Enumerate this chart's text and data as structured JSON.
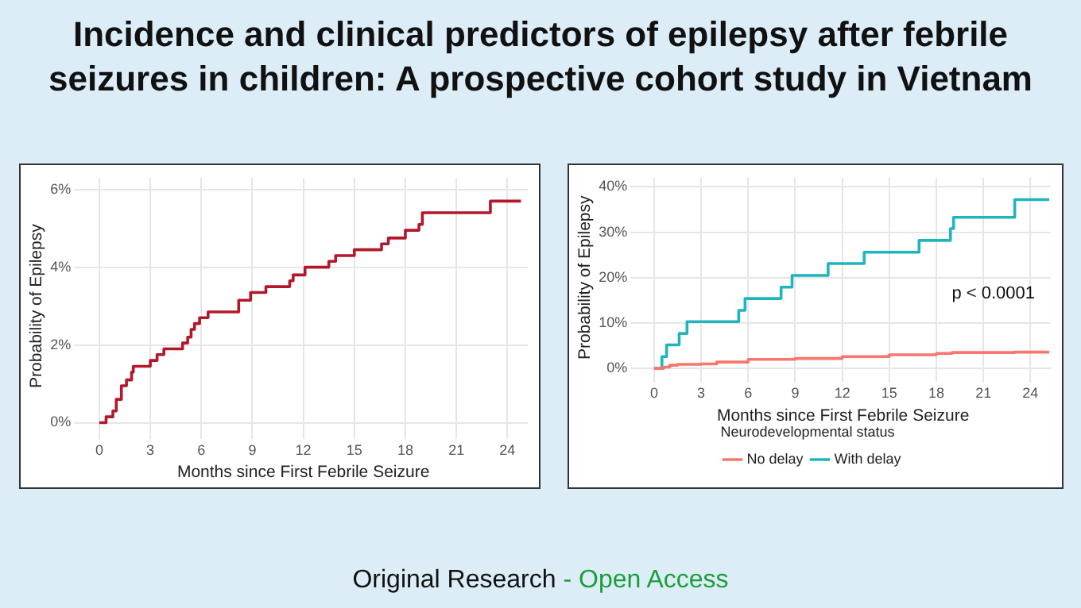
{
  "chart_data": [
    {
      "type": "other",
      "title": "Incidence and clinical predictors of epilepsy after febrile seizures in children: A prospective cohort study in Vietnam",
      "annotations": [
        "Original Research",
        "- Open Access"
      ]
    },
    {
      "type": "step",
      "xlabel": "Months since First Febrile Seizure",
      "ylabel": "Probability of Epilepsy",
      "xlim": [
        -1.2,
        25.2
      ],
      "ylim": [
        -0.3,
        6.3
      ],
      "xticks": [
        0,
        3,
        6,
        9,
        12,
        15,
        18,
        21,
        24
      ],
      "yticks": [
        {
          "value": 0,
          "label": "0%"
        },
        {
          "value": 2,
          "label": "2%"
        },
        {
          "value": 4,
          "label": "4%"
        },
        {
          "value": 6,
          "label": "6%"
        }
      ],
      "grid": true,
      "legend": false,
      "series": [
        {
          "color": "#b2182b",
          "x": [
            0,
            0.4,
            0.8,
            1.0,
            1.3,
            1.6,
            1.9,
            2.0,
            3.0,
            3.4,
            3.8,
            4.9,
            5.2,
            5.4,
            5.6,
            5.9,
            6.4,
            8.2,
            8.9,
            9.8,
            11.2,
            11.4,
            12.1,
            13.5,
            13.9,
            15.0,
            16.6,
            17.0,
            18.0,
            18.8,
            19.0,
            23.0,
            24.8
          ],
          "values": [
            0,
            0.15,
            0.3,
            0.6,
            0.95,
            1.1,
            1.3,
            1.45,
            1.6,
            1.75,
            1.9,
            2.05,
            2.2,
            2.4,
            2.55,
            2.7,
            2.85,
            3.15,
            3.35,
            3.5,
            3.65,
            3.8,
            4.0,
            4.15,
            4.3,
            4.45,
            4.6,
            4.75,
            4.95,
            5.1,
            5.4,
            5.7,
            5.7
          ]
        }
      ]
    },
    {
      "type": "step",
      "xlabel": "Months since First Febrile Seizure",
      "ylabel": "Probability of Epilepsy",
      "xlim": [
        -1.2,
        25.3
      ],
      "ylim": [
        -2,
        42
      ],
      "xticks": [
        0,
        3,
        6,
        9,
        12,
        15,
        18,
        21,
        24
      ],
      "yticks": [
        {
          "value": 0,
          "label": "0%"
        },
        {
          "value": 10,
          "label": "10%"
        },
        {
          "value": 20,
          "label": "20%"
        },
        {
          "value": 30,
          "label": "30%"
        },
        {
          "value": 40,
          "label": "40%"
        }
      ],
      "grid": true,
      "legend": "bottom",
      "legend_title": "Neurodevelopmental status",
      "annotations": [
        "p < 0.0001"
      ],
      "series": [
        {
          "name": "No delay",
          "color": "#f8766d",
          "x": [
            0,
            0.6,
            1.0,
            1.5,
            3.0,
            4.0,
            6.0,
            9.0,
            12.0,
            15.0,
            18.0,
            19.0,
            23.0,
            25.2
          ],
          "values": [
            0,
            0.3,
            0.7,
            0.9,
            1.0,
            1.4,
            2.0,
            2.2,
            2.6,
            3.0,
            3.3,
            3.5,
            3.6,
            3.6
          ]
        },
        {
          "name": "With delay",
          "color": "#1fb5bd",
          "x": [
            0,
            0.5,
            0.8,
            1.6,
            2.1,
            5.4,
            5.8,
            8.1,
            8.8,
            11.1,
            13.4,
            16.9,
            18.9,
            19.1,
            23.0,
            25.2
          ],
          "values": [
            0,
            2.6,
            5.2,
            7.7,
            10.3,
            12.8,
            15.4,
            17.9,
            20.5,
            23.1,
            25.6,
            28.2,
            30.8,
            33.3,
            37.2,
            37.2
          ]
        }
      ]
    }
  ]
}
